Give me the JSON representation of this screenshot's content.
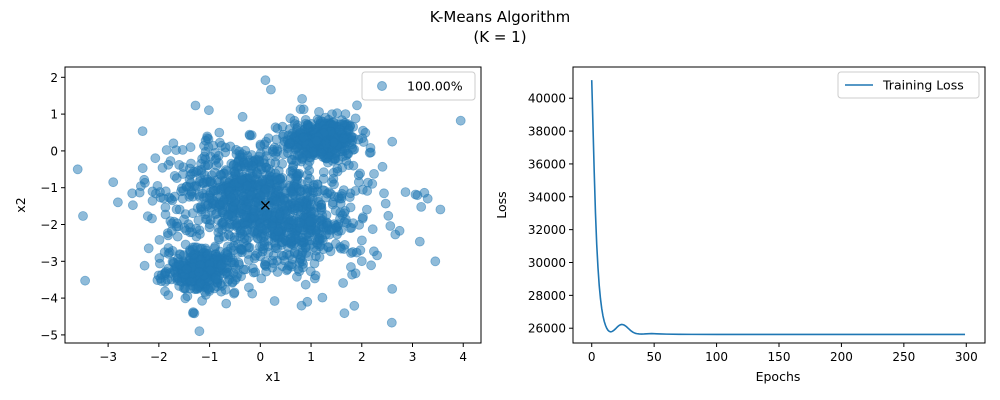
{
  "figure": {
    "title_line1": "K-Means Algorithm",
    "title_line2": "(K = 1)"
  },
  "chart_data": [
    {
      "type": "scatter",
      "xlabel": "x1",
      "ylabel": "x2",
      "xlim": [
        -3.85,
        4.35
      ],
      "ylim": [
        -5.22,
        2.28
      ],
      "xticks": [
        -3,
        -2,
        -1,
        0,
        1,
        2,
        3,
        4
      ],
      "yticks": [
        -5,
        -4,
        -3,
        -2,
        -1,
        0,
        1,
        2
      ],
      "legend": {
        "placement": "top-right",
        "entries": [
          "100.00%"
        ]
      },
      "grid": false,
      "point_color": "#1f77b4",
      "point_alpha": 0.5,
      "clusters": [
        {
          "cx": 1.2,
          "cy": 0.3,
          "sx": 0.35,
          "sy": 0.3,
          "n": 420
        },
        {
          "cx": -1.15,
          "cy": -3.25,
          "sx": 0.35,
          "sy": 0.3,
          "n": 320
        },
        {
          "cx": -0.4,
          "cy": -1.0,
          "sx": 0.6,
          "sy": 0.55,
          "n": 360
        },
        {
          "cx": 0.6,
          "cy": -2.0,
          "sx": 0.6,
          "sy": 0.55,
          "n": 360
        },
        {
          "cx": 0.1,
          "cy": -1.5,
          "sx": 1.2,
          "sy": 1.1,
          "n": 460
        }
      ],
      "outliers": [
        {
          "x": -3.6,
          "y": -0.5
        },
        {
          "x": 3.95,
          "y": 0.82
        },
        {
          "x": 0.1,
          "y": 1.92
        },
        {
          "x": -1.2,
          "y": -4.9
        },
        {
          "x": 3.45,
          "y": -3.0
        },
        {
          "x": 2.6,
          "y": -3.75
        },
        {
          "x": 3.3,
          "y": -1.3
        },
        {
          "x": -2.9,
          "y": -0.85
        },
        {
          "x": 2.6,
          "y": 0.25
        }
      ],
      "centroid": {
        "x": 0.1,
        "y": -1.48,
        "marker": "x",
        "color": "#000000"
      }
    },
    {
      "type": "line",
      "xlabel": "Epochs",
      "ylabel": "Loss",
      "xlim": [
        -15,
        315
      ],
      "ylim": [
        25100,
        41900
      ],
      "xticks": [
        0,
        50,
        100,
        150,
        200,
        250,
        300
      ],
      "yticks": [
        26000,
        28000,
        30000,
        32000,
        34000,
        36000,
        38000,
        40000
      ],
      "legend": {
        "placement": "top-right",
        "entries": [
          "Training Loss"
        ]
      },
      "grid": false,
      "series": [
        {
          "name": "Training Loss",
          "color": "#1f77b4",
          "x": [
            0,
            1,
            2,
            3,
            4,
            5,
            6,
            7,
            8,
            9,
            10,
            11,
            12,
            13,
            14,
            15,
            16,
            17,
            18,
            19,
            20,
            21,
            22,
            23,
            24,
            25,
            26,
            27,
            28,
            29,
            30,
            31,
            32,
            33,
            34,
            35,
            36,
            38,
            40,
            42,
            44,
            46,
            48,
            50,
            52,
            55,
            60,
            70,
            80,
            100,
            150,
            200,
            250,
            299
          ],
          "y": [
            41100,
            38300,
            35500,
            33000,
            31100,
            29700,
            28600,
            27800,
            27200,
            26750,
            26420,
            26180,
            26000,
            25880,
            25810,
            25780,
            25790,
            25830,
            25890,
            25960,
            26040,
            26110,
            26170,
            26210,
            26230,
            26220,
            26190,
            26140,
            26080,
            26010,
            25940,
            25870,
            25810,
            25760,
            25720,
            25690,
            25670,
            25650,
            25645,
            25650,
            25660,
            25670,
            25675,
            25670,
            25660,
            25650,
            25640,
            25630,
            25625,
            25620,
            25620,
            25620,
            25620,
            25620
          ]
        }
      ]
    }
  ]
}
